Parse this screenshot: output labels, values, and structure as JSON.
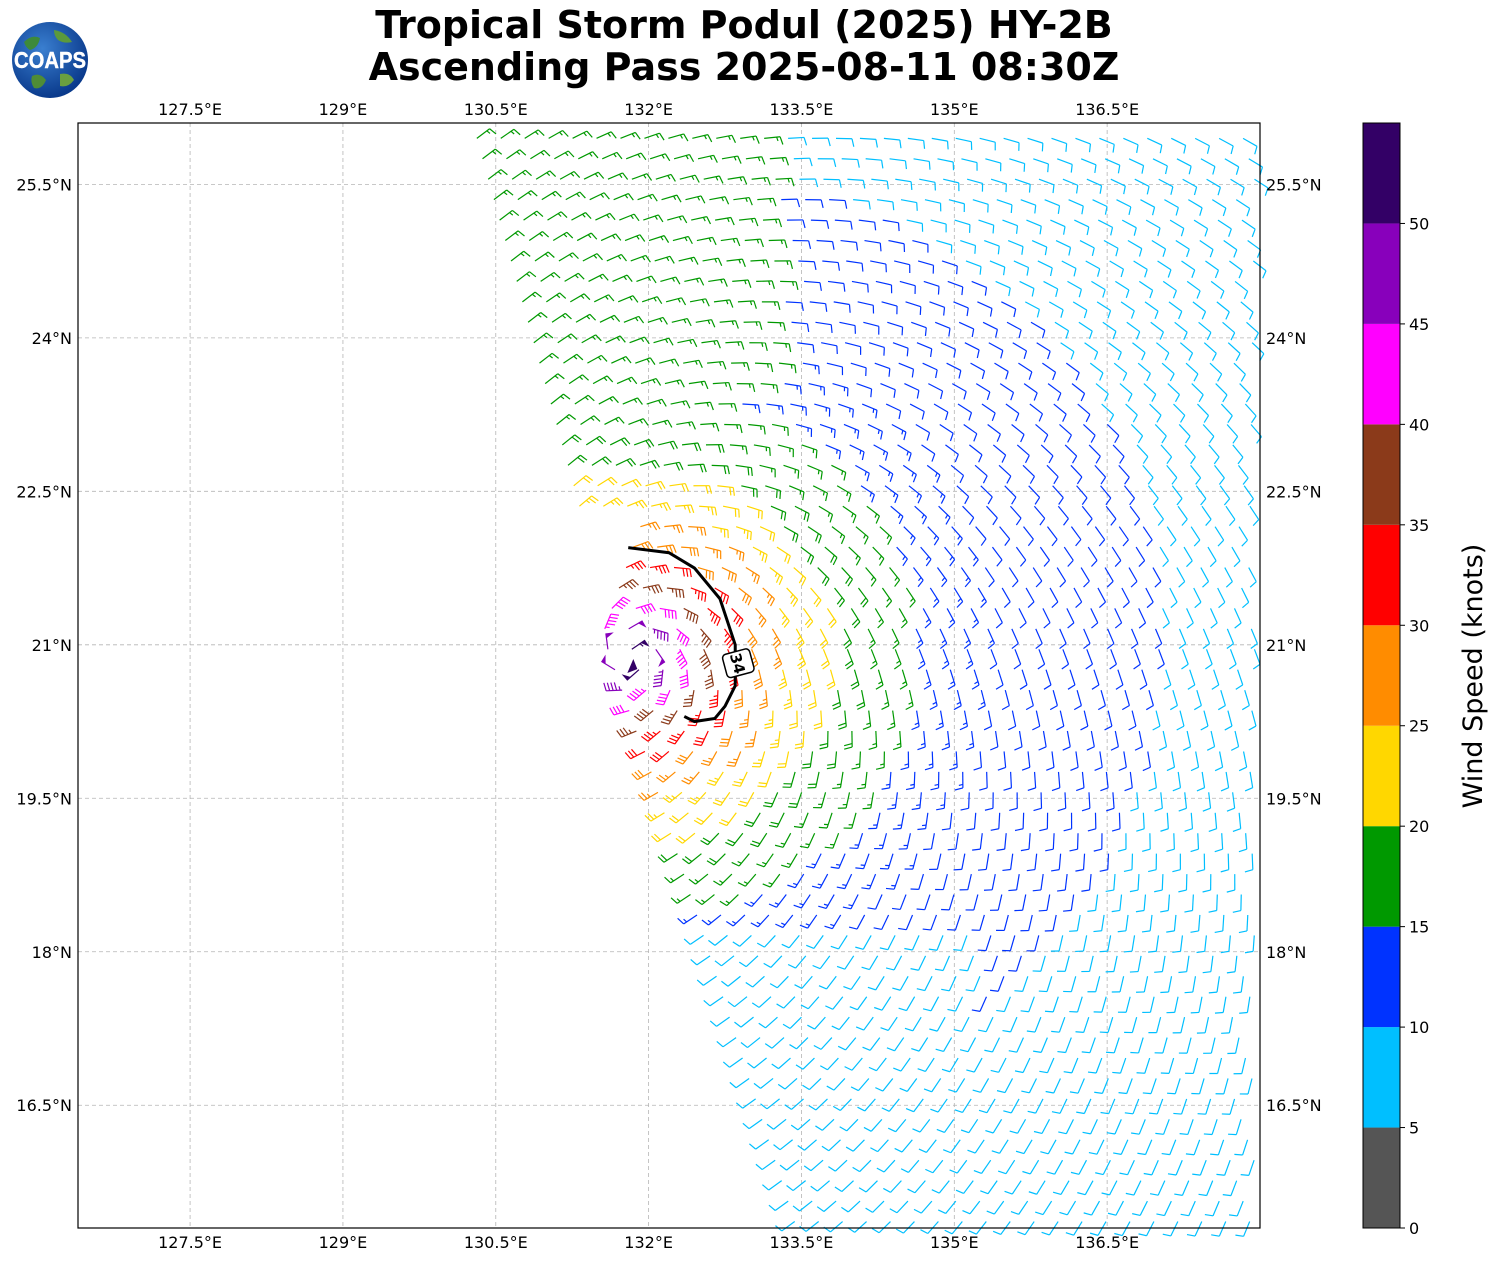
{
  "header": {
    "title_line1": "Tropical Storm Podul (2025) HY-2B",
    "title_line2": "Ascending Pass 2025-08-11 08:30Z",
    "logo_text": "COAPS"
  },
  "map": {
    "lon_range": [
      126.4,
      138.0
    ],
    "lat_range": [
      15.3,
      26.1
    ],
    "lon_ticks": [
      {
        "value": 127.5,
        "label": "127.5°E"
      },
      {
        "value": 129.0,
        "label": "129°E"
      },
      {
        "value": 130.5,
        "label": "130.5°E"
      },
      {
        "value": 132.0,
        "label": "132°E"
      },
      {
        "value": 133.5,
        "label": "133.5°E"
      },
      {
        "value": 135.0,
        "label": "135°E"
      },
      {
        "value": 136.5,
        "label": "136.5°E"
      }
    ],
    "lat_ticks": [
      {
        "value": 25.5,
        "label": "25.5°N"
      },
      {
        "value": 24.0,
        "label": "24°N"
      },
      {
        "value": 22.5,
        "label": "22.5°N"
      },
      {
        "value": 21.0,
        "label": "21°N"
      },
      {
        "value": 19.5,
        "label": "19.5°N"
      },
      {
        "value": 18.0,
        "label": "18°N"
      },
      {
        "value": 16.5,
        "label": "16.5°N"
      }
    ],
    "gridlines": true,
    "storm_center": {
      "lon": 131.85,
      "lat": 20.9
    },
    "contour_34kt": {
      "label": "34",
      "points": [
        [
          131.8,
          21.95
        ],
        [
          132.2,
          21.9
        ],
        [
          132.45,
          21.75
        ],
        [
          132.7,
          21.45
        ],
        [
          132.85,
          21.0
        ],
        [
          132.85,
          20.6
        ],
        [
          132.75,
          20.4
        ],
        [
          132.65,
          20.28
        ],
        [
          132.45,
          20.25
        ],
        [
          132.35,
          20.3
        ]
      ]
    },
    "barb_field_description_free": true
  },
  "colorbar": {
    "label": "Wind Speed (knots)",
    "bins": [
      {
        "from": 0,
        "to": 5,
        "color": "#555555"
      },
      {
        "from": 5,
        "to": 10,
        "color": "#00bfff"
      },
      {
        "from": 10,
        "to": 15,
        "color": "#0033ff"
      },
      {
        "from": 15,
        "to": 20,
        "color": "#009900"
      },
      {
        "from": 20,
        "to": 25,
        "color": "#ffd700"
      },
      {
        "from": 25,
        "to": 30,
        "color": "#ff8c00"
      },
      {
        "from": 30,
        "to": 35,
        "color": "#ff0000"
      },
      {
        "from": 35,
        "to": 40,
        "color": "#8b3a1a"
      },
      {
        "from": 40,
        "to": 45,
        "color": "#ff00ff"
      },
      {
        "from": 45,
        "to": 50,
        "color": "#8800bb"
      },
      {
        "from": 50,
        "to": 55,
        "color": "#330066"
      }
    ],
    "ticks": [
      "0",
      "5",
      "10",
      "15",
      "20",
      "25",
      "30",
      "35",
      "40",
      "45",
      "50"
    ]
  }
}
